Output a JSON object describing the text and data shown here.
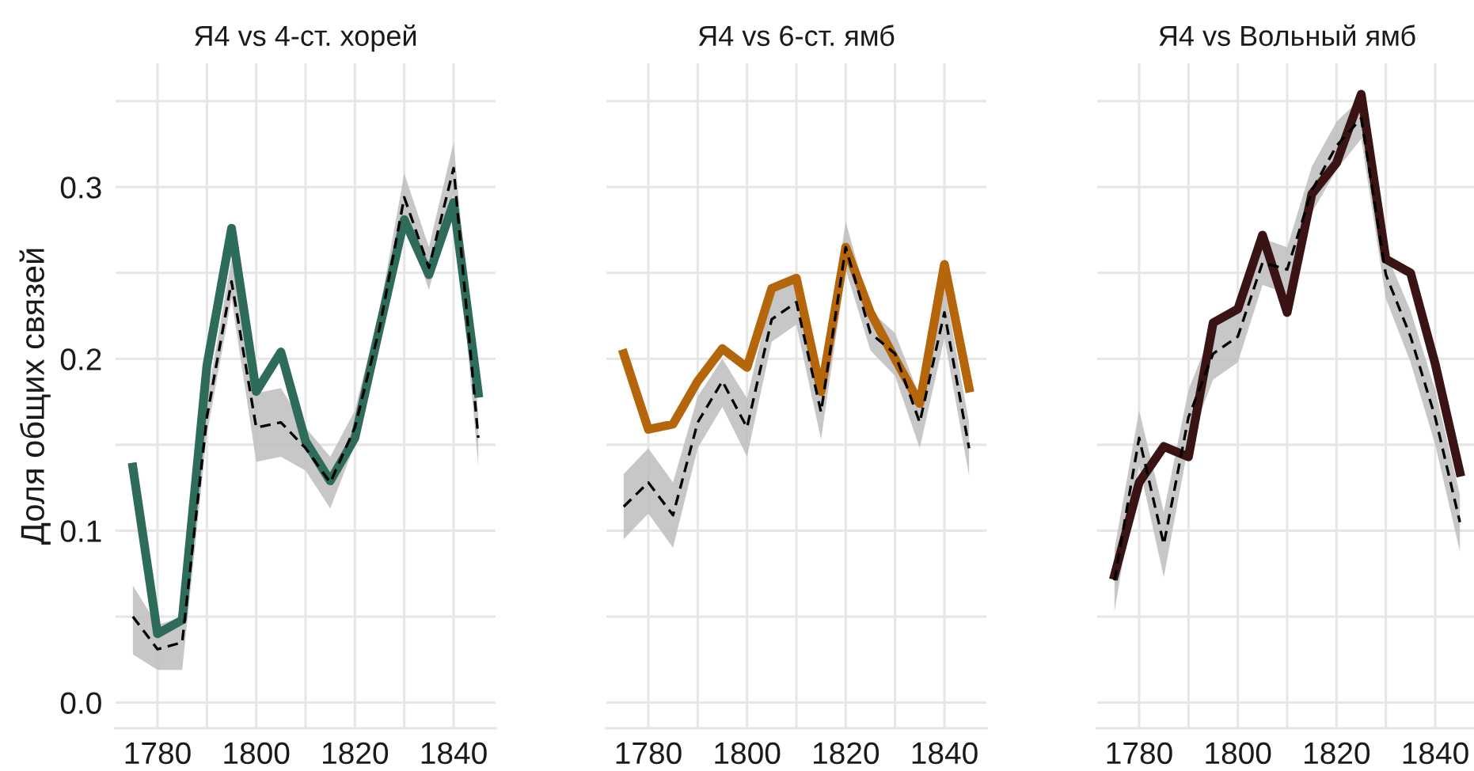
{
  "chart_data": [
    {
      "type": "line",
      "title": "Я4 vs 4-ст. хорей",
      "ylabel": "Доля общих связей",
      "x": [
        1775,
        1780,
        1785,
        1790,
        1795,
        1800,
        1805,
        1810,
        1815,
        1820,
        1825,
        1830,
        1835,
        1840,
        1845
      ],
      "series": [
        {
          "color": "#2e6b5a",
          "values": [
            0.137,
            0.04,
            0.048,
            0.196,
            0.276,
            0.181,
            0.204,
            0.152,
            0.129,
            0.154,
            0.218,
            0.281,
            0.249,
            0.291,
            0.18
          ]
        },
        {
          "color": "#000000",
          "line_style": "dashed",
          "values": [
            0.05,
            0.031,
            0.035,
            0.166,
            0.245,
            0.16,
            0.163,
            0.148,
            0.128,
            0.16,
            0.218,
            0.294,
            0.253,
            0.311,
            0.154
          ],
          "lower": [
            0.028,
            0.019,
            0.019,
            0.156,
            0.235,
            0.14,
            0.143,
            0.135,
            0.113,
            0.15,
            0.208,
            0.282,
            0.24,
            0.296,
            0.138
          ],
          "upper": [
            0.068,
            0.045,
            0.05,
            0.176,
            0.258,
            0.18,
            0.183,
            0.16,
            0.143,
            0.17,
            0.228,
            0.308,
            0.265,
            0.326,
            0.168
          ]
        }
      ],
      "xlim": [
        1771.5,
        1848.5
      ],
      "ylim": [
        -0.015,
        0.372
      ],
      "xticks": [
        1780,
        {
          "value": 1790,
          "label": null
        },
        1800,
        {
          "value": 1810,
          "label": null
        },
        1820,
        {
          "value": 1830,
          "label": null
        },
        1840
      ],
      "yticks": [
        {
          "value": 0,
          "label": "0.0"
        },
        {
          "value": 0.05,
          "label": null
        },
        0.1,
        {
          "value": 0.15,
          "label": null
        },
        0.2,
        {
          "value": 0.25,
          "label": null
        },
        0.3,
        {
          "value": 0.35,
          "label": null
        }
      ],
      "grid": true
    },
    {
      "type": "line",
      "title": "Я4 vs 6-ст. ямб",
      "x": [
        1775,
        1780,
        1785,
        1790,
        1795,
        1800,
        1805,
        1810,
        1815,
        1820,
        1825,
        1830,
        1835,
        1840,
        1845
      ],
      "series": [
        {
          "color": "#b5650a",
          "values": [
            0.203,
            0.159,
            0.162,
            0.187,
            0.206,
            0.195,
            0.241,
            0.247,
            0.181,
            0.265,
            0.227,
            0.2,
            0.174,
            0.255,
            0.183
          ]
        },
        {
          "color": "#000000",
          "line_style": "dashed",
          "values": [
            0.114,
            0.128,
            0.109,
            0.163,
            0.187,
            0.16,
            0.223,
            0.233,
            0.169,
            0.265,
            0.215,
            0.203,
            0.163,
            0.227,
            0.148
          ],
          "lower": [
            0.095,
            0.11,
            0.09,
            0.148,
            0.172,
            0.143,
            0.21,
            0.22,
            0.153,
            0.252,
            0.205,
            0.19,
            0.148,
            0.212,
            0.132
          ],
          "upper": [
            0.133,
            0.148,
            0.128,
            0.178,
            0.2,
            0.177,
            0.238,
            0.246,
            0.185,
            0.28,
            0.228,
            0.215,
            0.178,
            0.242,
            0.163
          ]
        }
      ],
      "xlim": [
        1771.5,
        1848.5
      ],
      "ylim": [
        -0.015,
        0.372
      ],
      "xticks": [
        1780,
        {
          "value": 1790,
          "label": null
        },
        1800,
        {
          "value": 1810,
          "label": null
        },
        1820,
        {
          "value": 1830,
          "label": null
        },
        1840
      ],
      "yticks": [
        {
          "value": 0,
          "label": null
        },
        {
          "value": 0.05,
          "label": null
        },
        {
          "value": 0.1,
          "label": null
        },
        {
          "value": 0.15,
          "label": null
        },
        {
          "value": 0.2,
          "label": null
        },
        {
          "value": 0.25,
          "label": null
        },
        {
          "value": 0.3,
          "label": null
        },
        {
          "value": 0.35,
          "label": null
        }
      ],
      "grid": true,
      "tick_labels": "x"
    },
    {
      "type": "line",
      "title": "Я4 vs Вольный ямб",
      "x": [
        1775,
        1780,
        1785,
        1790,
        1795,
        1800,
        1805,
        1810,
        1815,
        1820,
        1825,
        1830,
        1835,
        1840,
        1845
      ],
      "series": [
        {
          "color": "#3a1414",
          "values": [
            0.074,
            0.128,
            0.149,
            0.143,
            0.221,
            0.229,
            0.272,
            0.227,
            0.296,
            0.314,
            0.354,
            0.258,
            0.25,
            0.197,
            0.134
          ]
        },
        {
          "color": "#000000",
          "line_style": "dashed",
          "values": [
            0.071,
            0.154,
            0.092,
            0.166,
            0.203,
            0.213,
            0.256,
            0.252,
            0.298,
            0.324,
            0.34,
            0.249,
            0.213,
            0.166,
            0.105
          ],
          "lower": [
            0.053,
            0.138,
            0.073,
            0.15,
            0.188,
            0.198,
            0.243,
            0.238,
            0.285,
            0.31,
            0.328,
            0.235,
            0.198,
            0.15,
            0.088
          ],
          "upper": [
            0.089,
            0.17,
            0.111,
            0.182,
            0.218,
            0.228,
            0.27,
            0.265,
            0.312,
            0.338,
            0.352,
            0.262,
            0.228,
            0.182,
            0.121
          ]
        }
      ],
      "xlim": [
        1771.5,
        1848.5
      ],
      "ylim": [
        -0.015,
        0.372
      ],
      "xticks": [
        1780,
        {
          "value": 1790,
          "label": null
        },
        1800,
        {
          "value": 1810,
          "label": null
        },
        1820,
        {
          "value": 1830,
          "label": null
        },
        1840
      ],
      "yticks": [
        {
          "value": 0,
          "label": null
        },
        {
          "value": 0.05,
          "label": null
        },
        {
          "value": 0.1,
          "label": null
        },
        {
          "value": 0.15,
          "label": null
        },
        {
          "value": 0.2,
          "label": null
        },
        {
          "value": 0.25,
          "label": null
        },
        {
          "value": 0.3,
          "label": null
        },
        {
          "value": 0.35,
          "label": null
        }
      ],
      "grid": true,
      "tick_labels": "x"
    }
  ]
}
